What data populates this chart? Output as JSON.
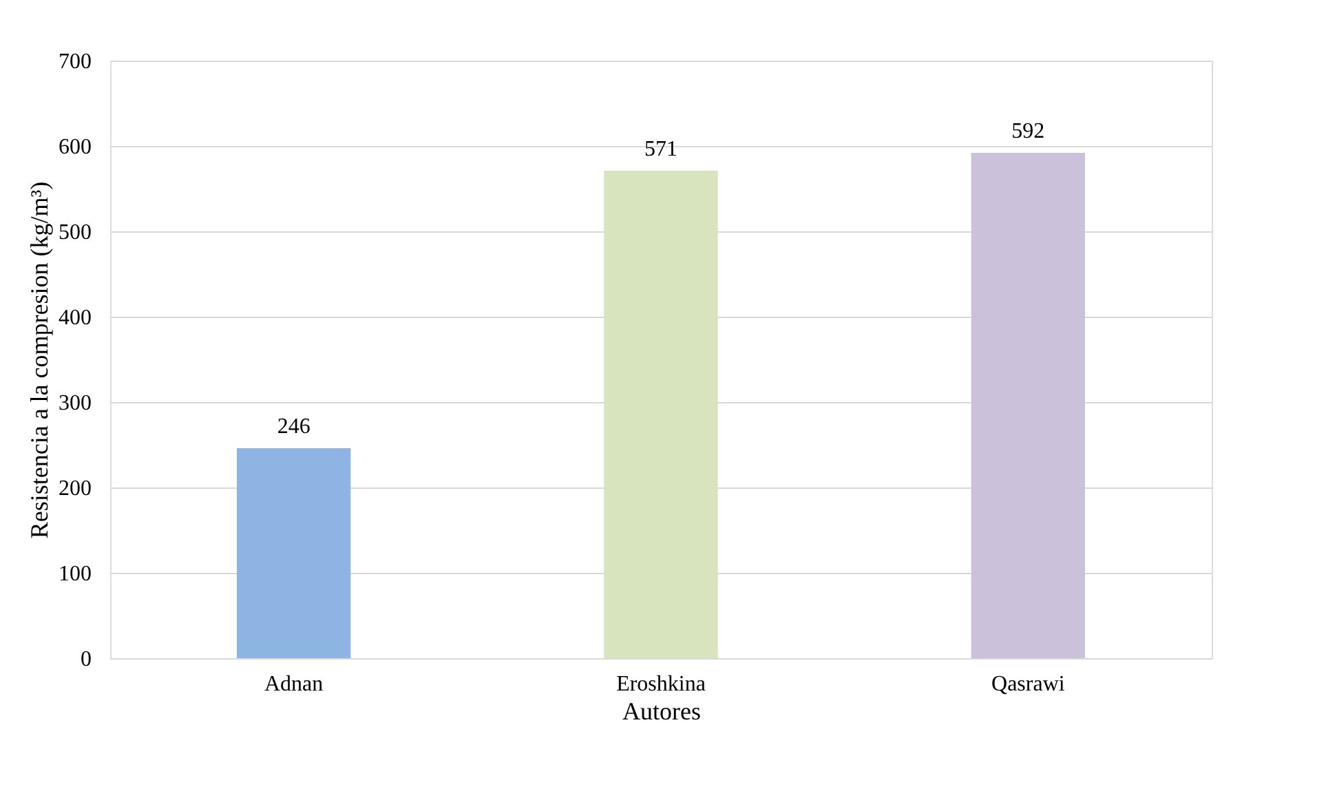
{
  "chart_data": {
    "type": "bar",
    "categories": [
      "Adnan",
      "Eroshkina",
      "Qasrawi"
    ],
    "values": [
      246,
      571,
      592
    ],
    "colors": [
      "#8eb4e3",
      "#d7e4bd",
      "#ccc1da"
    ],
    "xlabel": "Autores",
    "ylabel": "Resistencia a la compresion (kg/m³)",
    "ylim": [
      0,
      700
    ],
    "yticks": [
      0,
      100,
      200,
      300,
      400,
      500,
      600,
      700
    ],
    "grid": "y",
    "data_labels": true
  }
}
